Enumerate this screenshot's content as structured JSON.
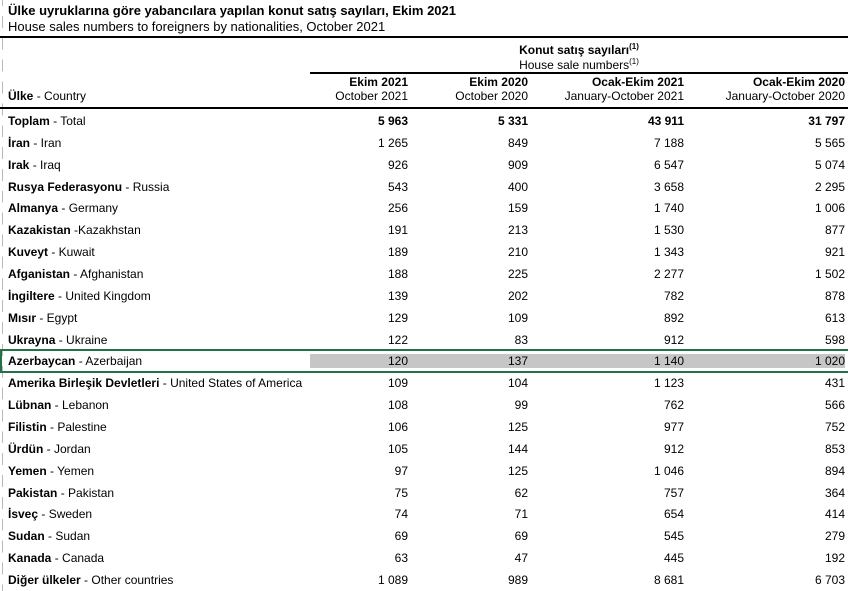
{
  "page": {
    "title_tr": "Ülke uyruklarına göre yabancılara yapılan konut satış sayıları, Ekim 2021",
    "title_en": "House sales numbers to foreigners by nationalities, October 2021"
  },
  "table": {
    "group_header": {
      "tr": "Konut satış sayıları",
      "en": "House sale numbers",
      "footnote": "(1)"
    },
    "row_header": {
      "tr": "Ülke",
      "sep": " - ",
      "en": "Country"
    },
    "columns": [
      {
        "tr": "Ekim 2021",
        "en": "October 2021"
      },
      {
        "tr": "Ekim 2020",
        "en": "October 2020"
      },
      {
        "tr": "Ocak-Ekim 2021",
        "en": "January-October 2021"
      },
      {
        "tr": "Ocak-Ekim 2020",
        "en": "January-October 2020"
      }
    ],
    "rows": [
      {
        "tr": "Toplam",
        "sep": " - ",
        "en": "Total",
        "values": [
          "5 963",
          "5 331",
          "43 911",
          "31 797"
        ],
        "bold": true,
        "highlighted": false
      },
      {
        "tr": "İran",
        "sep": " - ",
        "en": "Iran",
        "values": [
          "1 265",
          "849",
          "7 188",
          "5 565"
        ],
        "bold": false,
        "highlighted": false
      },
      {
        "tr": "Irak",
        "sep": " - ",
        "en": "Iraq",
        "values": [
          "926",
          "909",
          "6 547",
          "5 074"
        ],
        "bold": false,
        "highlighted": false
      },
      {
        "tr": "Rusya Federasyonu",
        "sep": " - ",
        "en": "Russia",
        "values": [
          "543",
          "400",
          "3 658",
          "2 295"
        ],
        "bold": false,
        "highlighted": false
      },
      {
        "tr": "Almanya",
        "sep": " - ",
        "en": "Germany",
        "values": [
          "256",
          "159",
          "1 740",
          "1 006"
        ],
        "bold": false,
        "highlighted": false
      },
      {
        "tr": "Kazakistan",
        "sep": " -",
        "en": "Kazakhstan",
        "values": [
          "191",
          "213",
          "1 530",
          "877"
        ],
        "bold": false,
        "highlighted": false
      },
      {
        "tr": "Kuveyt",
        "sep": " - ",
        "en": "Kuwait",
        "values": [
          "189",
          "210",
          "1 343",
          "921"
        ],
        "bold": false,
        "highlighted": false
      },
      {
        "tr": "Afganistan",
        "sep": " - ",
        "en": "Afghanistan",
        "values": [
          "188",
          "225",
          "2 277",
          "1 502"
        ],
        "bold": false,
        "highlighted": false
      },
      {
        "tr": "İngiltere",
        "sep": " - ",
        "en": "United Kingdom",
        "values": [
          "139",
          "202",
          "782",
          "878"
        ],
        "bold": false,
        "highlighted": false
      },
      {
        "tr": "Mısır",
        "sep": " - ",
        "en": "Egypt",
        "values": [
          "129",
          "109",
          "892",
          "613"
        ],
        "bold": false,
        "highlighted": false
      },
      {
        "tr": "Ukrayna",
        "sep": " - ",
        "en": "Ukraine",
        "values": [
          "122",
          "83",
          "912",
          "598"
        ],
        "bold": false,
        "highlighted": false
      },
      {
        "tr": "Azerbaycan",
        "sep": " - ",
        "en": "Azerbaijan",
        "values": [
          "120",
          "137",
          "1 140",
          "1 020"
        ],
        "bold": false,
        "highlighted": true
      },
      {
        "tr": "Amerika Birleşik Devletleri",
        "sep": " - ",
        "en": "United States of America",
        "values": [
          "109",
          "104",
          "1 123",
          "431"
        ],
        "bold": false,
        "highlighted": false
      },
      {
        "tr": "Lübnan",
        "sep": " - ",
        "en": "Lebanon",
        "values": [
          "108",
          "99",
          "762",
          "566"
        ],
        "bold": false,
        "highlighted": false
      },
      {
        "tr": "Filistin",
        "sep": " - ",
        "en": "Palestine",
        "values": [
          "106",
          "125",
          "977",
          "752"
        ],
        "bold": false,
        "highlighted": false
      },
      {
        "tr": "Ürdün",
        "sep": " - ",
        "en": "Jordan",
        "values": [
          "105",
          "144",
          "912",
          "853"
        ],
        "bold": false,
        "highlighted": false
      },
      {
        "tr": "Yemen",
        "sep": " - ",
        "en": "Yemen",
        "values": [
          "97",
          "125",
          "1 046",
          "894"
        ],
        "bold": false,
        "highlighted": false
      },
      {
        "tr": "Pakistan",
        "sep": " - ",
        "en": "Pakistan",
        "values": [
          "75",
          "62",
          "757",
          "364"
        ],
        "bold": false,
        "highlighted": false
      },
      {
        "tr": "İsveç",
        "sep": " - ",
        "en": "Sweden",
        "values": [
          "74",
          "71",
          "654",
          "414"
        ],
        "bold": false,
        "highlighted": false
      },
      {
        "tr": "Sudan",
        "sep": " - ",
        "en": "Sudan",
        "values": [
          "69",
          "69",
          "545",
          "279"
        ],
        "bold": false,
        "highlighted": false
      },
      {
        "tr": "Kanada",
        "sep": " - ",
        "en": "Canada",
        "values": [
          "63",
          "47",
          "445",
          "192"
        ],
        "bold": false,
        "highlighted": false
      },
      {
        "tr": "Diğer ülkeler",
        "sep": " - ",
        "en": "Other countries",
        "values": [
          "1 089",
          "989",
          "8 681",
          "6 703"
        ],
        "bold": false,
        "highlighted": false
      }
    ]
  },
  "highlight": {
    "country": "Azerbaycan",
    "border_color": "#217346",
    "fill_color": "#c6c6c6"
  }
}
